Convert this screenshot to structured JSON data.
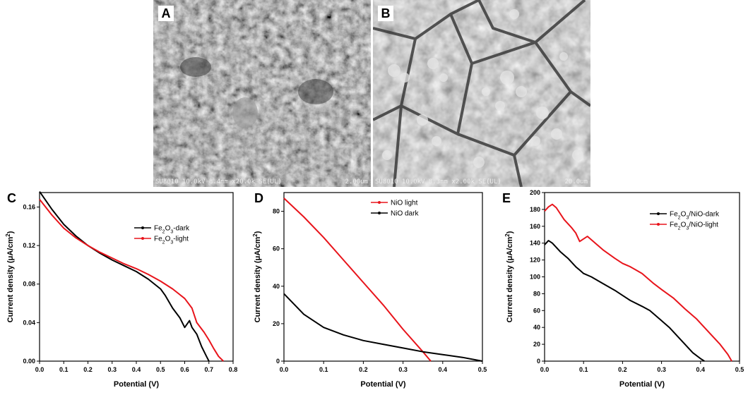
{
  "micrographs": [
    {
      "label": "A",
      "caption": "SU8010 10.0kV 8.4mm x20.0k SE(UL)",
      "scale": "2.00um"
    },
    {
      "label": "B",
      "caption": "SU8010 10.0kV 8.3mm x2.00k SE(UL)",
      "scale": "20.0um"
    }
  ],
  "chart_data": [
    {
      "panel": "C",
      "type": "line",
      "xlabel": "Potential (V)",
      "ylabel": "Current density (μA/cm²)",
      "xlim": [
        0.0,
        0.8
      ],
      "ylim": [
        0.0,
        0.175
      ],
      "xticks": [
        "0.0",
        "0.1",
        "0.2",
        "0.3",
        "0.4",
        "0.5",
        "0.6",
        "0.7",
        "0.8"
      ],
      "yticks": [
        "0.00",
        "0.04",
        "0.08",
        "0.12",
        "0.16"
      ],
      "legend_position": "right",
      "series": [
        {
          "name": "Fe2O3-dark",
          "color": "#000000",
          "x": [
            0,
            0.05,
            0.1,
            0.15,
            0.2,
            0.25,
            0.3,
            0.35,
            0.4,
            0.45,
            0.5,
            0.52,
            0.55,
            0.58,
            0.6,
            0.62,
            0.63,
            0.65,
            0.67,
            0.69,
            0.7
          ],
          "y": [
            0.176,
            0.158,
            0.142,
            0.13,
            0.12,
            0.112,
            0.105,
            0.099,
            0.093,
            0.085,
            0.075,
            0.068,
            0.055,
            0.045,
            0.035,
            0.042,
            0.035,
            0.028,
            0.015,
            0.005,
            0.0
          ]
        },
        {
          "name": "Fe2O3-light",
          "color": "#e8141b",
          "x": [
            0,
            0.05,
            0.1,
            0.15,
            0.2,
            0.25,
            0.3,
            0.35,
            0.4,
            0.45,
            0.5,
            0.55,
            0.6,
            0.63,
            0.65,
            0.68,
            0.7,
            0.72,
            0.74,
            0.76
          ],
          "y": [
            0.168,
            0.152,
            0.138,
            0.128,
            0.12,
            0.113,
            0.107,
            0.101,
            0.096,
            0.09,
            0.083,
            0.075,
            0.065,
            0.055,
            0.04,
            0.03,
            0.022,
            0.013,
            0.005,
            0.0
          ]
        }
      ]
    },
    {
      "panel": "D",
      "type": "line",
      "xlabel": "Potential (V)",
      "ylabel": "Current density (μA/cm²)",
      "xlim": [
        0.0,
        0.5
      ],
      "ylim": [
        0,
        90
      ],
      "xticks": [
        "0.0",
        "0.1",
        "0.2",
        "0.3",
        "0.4",
        "0.5"
      ],
      "yticks": [
        "0",
        "20",
        "40",
        "60",
        "80"
      ],
      "legend_position": "top-right",
      "series": [
        {
          "name": "NiO light",
          "color": "#e8141b",
          "x": [
            0,
            0.05,
            0.1,
            0.15,
            0.2,
            0.25,
            0.3,
            0.35,
            0.37
          ],
          "y": [
            87,
            77,
            66,
            54,
            42,
            30,
            17,
            5,
            0
          ]
        },
        {
          "name": "NiO dark",
          "color": "#000000",
          "x": [
            0,
            0.05,
            0.1,
            0.15,
            0.2,
            0.25,
            0.3,
            0.35,
            0.4,
            0.45,
            0.5
          ],
          "y": [
            36,
            25,
            18,
            14,
            11,
            9,
            7,
            5,
            3.5,
            2,
            0
          ]
        }
      ]
    },
    {
      "panel": "E",
      "type": "line",
      "xlabel": "Potential (V)",
      "ylabel": "Current density (μA/cm²)",
      "xlim": [
        0.0,
        0.5
      ],
      "ylim": [
        0,
        200
      ],
      "xticks": [
        "0.0",
        "0.1",
        "0.2",
        "0.3",
        "0.4",
        "0.5"
      ],
      "yticks": [
        "0",
        "20",
        "40",
        "60",
        "80",
        "100",
        "120",
        "140",
        "160",
        "180",
        "200"
      ],
      "legend_position": "top-right",
      "series": [
        {
          "name": "Fe2O3/NiO-dark",
          "color": "#000000",
          "x": [
            0,
            0.01,
            0.02,
            0.04,
            0.06,
            0.08,
            0.09,
            0.1,
            0.12,
            0.15,
            0.18,
            0.2,
            0.22,
            0.25,
            0.27,
            0.3,
            0.32,
            0.34,
            0.36,
            0.38,
            0.4,
            0.41
          ],
          "y": [
            138,
            143,
            140,
            130,
            122,
            112,
            108,
            104,
            100,
            92,
            84,
            78,
            72,
            65,
            60,
            48,
            40,
            30,
            20,
            10,
            3,
            0
          ]
        },
        {
          "name": "Fe2O3/NiO-light",
          "color": "#e8141b",
          "x": [
            0,
            0.01,
            0.02,
            0.03,
            0.05,
            0.07,
            0.08,
            0.09,
            0.1,
            0.11,
            0.13,
            0.15,
            0.18,
            0.2,
            0.22,
            0.25,
            0.28,
            0.3,
            0.33,
            0.36,
            0.39,
            0.42,
            0.45,
            0.47,
            0.48
          ],
          "y": [
            178,
            183,
            186,
            182,
            168,
            158,
            152,
            142,
            145,
            148,
            140,
            132,
            122,
            116,
            112,
            104,
            92,
            85,
            75,
            62,
            50,
            35,
            20,
            8,
            0
          ]
        }
      ]
    }
  ]
}
